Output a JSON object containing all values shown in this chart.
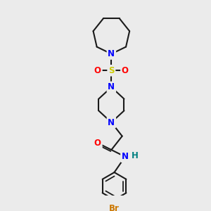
{
  "bg_color": "#ebebeb",
  "line_color": "#1a1a1a",
  "N_color": "#0000ff",
  "O_color": "#ff0000",
  "S_color": "#cccc00",
  "Br_color": "#cc7700",
  "H_color": "#008080",
  "line_width": 1.5,
  "font_size": 8.5,
  "figsize": [
    3.0,
    3.0
  ],
  "dpi": 100,
  "xlim": [
    0,
    10
  ],
  "ylim": [
    0,
    10
  ]
}
